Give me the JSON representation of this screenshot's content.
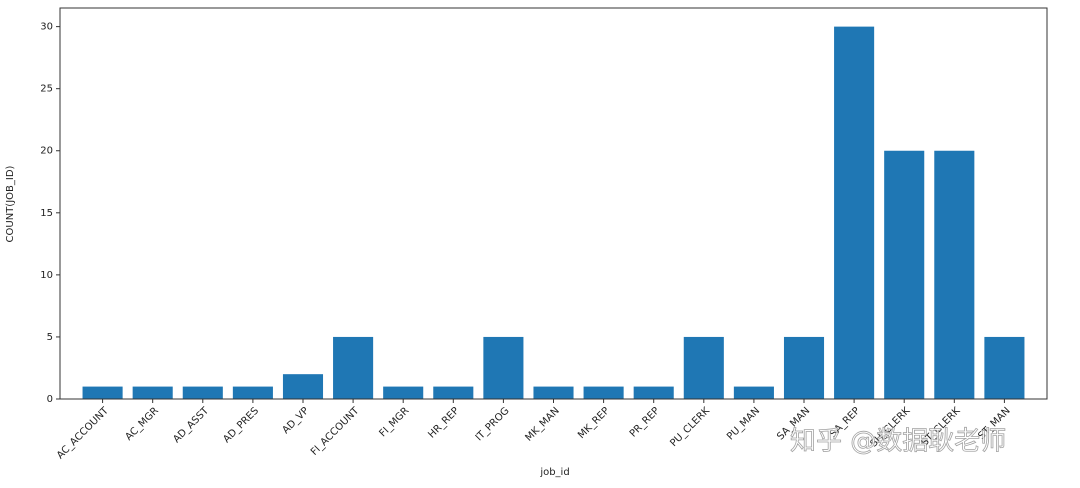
{
  "chart_data": {
    "type": "bar",
    "x_label": "job_id",
    "y_label": "COUNT(JOB_ID)",
    "categories": [
      "AC_ACCOUNT",
      "AC_MGR",
      "AD_ASST",
      "AD_PRES",
      "AD_VP",
      "FI_ACCOUNT",
      "FI_MGR",
      "HR_REP",
      "IT_PROG",
      "MK_MAN",
      "MK_REP",
      "PR_REP",
      "PU_CLERK",
      "PU_MAN",
      "SA_MAN",
      "SA_REP",
      "SH_CLERK",
      "ST_CLERK",
      "ST_MAN"
    ],
    "values": [
      1,
      1,
      1,
      1,
      2,
      5,
      1,
      1,
      5,
      1,
      1,
      1,
      5,
      1,
      5,
      30,
      20,
      20,
      5
    ],
    "color": "#1f77b4",
    "ylim": [
      0,
      31.5
    ],
    "yticks": [
      0,
      5,
      10,
      15,
      20,
      25,
      30
    ],
    "watermark": "知乎 @数据耿老师"
  }
}
